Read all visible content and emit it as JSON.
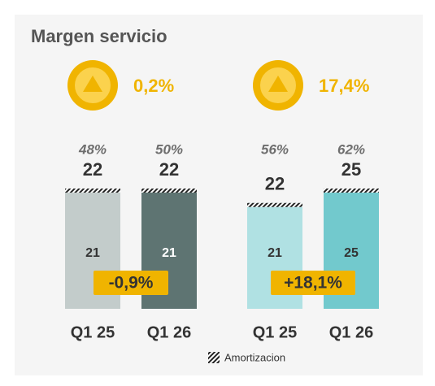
{
  "chart_data": {
    "type": "bar",
    "title": "Margen servicio",
    "legend": "Amortizacion",
    "groups": [
      {
        "change": "0,2%",
        "delta": "-0,9%",
        "ylim": [
          0,
          22
        ],
        "bars": [
          {
            "category": "Q1 25",
            "share": "48%",
            "total": 22,
            "value": 21,
            "color": "#c3cccb"
          },
          {
            "category": "Q1 26",
            "share": "50%",
            "total": 22,
            "value": 21,
            "color": "#5e7472"
          }
        ]
      },
      {
        "change": "17,4%",
        "delta": "+18,1%",
        "ylim": [
          0,
          25
        ],
        "bars": [
          {
            "category": "Q1 25",
            "share": "56%",
            "total": 22,
            "value": 21,
            "color": "#b0e1e3"
          },
          {
            "category": "Q1 26",
            "share": "62%",
            "total": 25,
            "value": 25,
            "color": "#72c9cd"
          }
        ]
      }
    ]
  }
}
